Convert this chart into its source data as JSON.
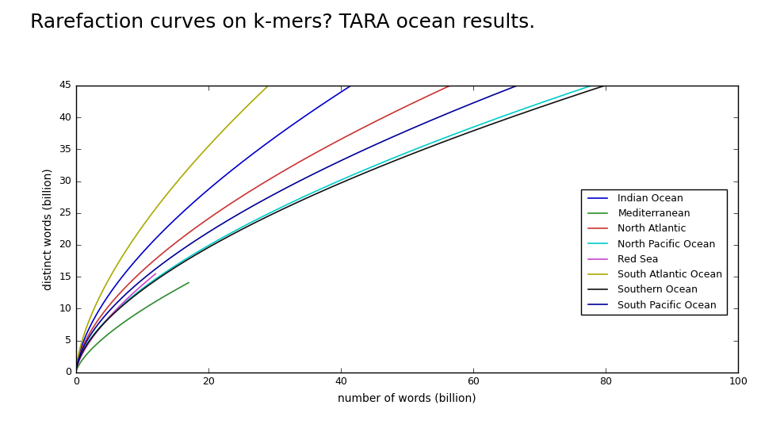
{
  "title": "Rarefaction curves on k-mers? TARA ocean results.",
  "xlabel": "number of words (billion)",
  "ylabel": "distinct words (billion)",
  "xlim": [
    0,
    100
  ],
  "ylim": [
    0,
    45
  ],
  "xticks": [
    0,
    20,
    40,
    60,
    80,
    100
  ],
  "yticks": [
    0,
    5,
    10,
    15,
    20,
    25,
    30,
    35,
    40,
    45
  ],
  "title_fontsize": 18,
  "axis_fontsize": 10,
  "tick_fontsize": 9,
  "legend_fontsize": 9,
  "background_color": "#ffffff",
  "series": [
    {
      "name": "Indian Ocean",
      "color": "#0000cc",
      "x_start": 0.1,
      "x_end": 95,
      "coeff": 4.55,
      "power": 0.615
    },
    {
      "name": "Mediterranean",
      "color": "#2e8b2e",
      "x_start": 0.1,
      "x_end": 17,
      "coeff": 2.05,
      "power": 0.68
    },
    {
      "name": "North Atlantic",
      "color": "#cc3333",
      "x_start": 0.1,
      "x_end": 60,
      "coeff": 4.0,
      "power": 0.6
    },
    {
      "name": "North Pacific Ocean",
      "color": "#00cccc",
      "x_start": 0.1,
      "x_end": 95,
      "coeff": 3.3,
      "power": 0.6
    },
    {
      "name": "Red Sea",
      "color": "#cc44cc",
      "x_start": 0.1,
      "x_end": 12,
      "coeff": 3.0,
      "power": 0.66
    },
    {
      "name": "South Atlantic Ocean",
      "color": "#aaaa00",
      "x_start": 0.1,
      "x_end": 47,
      "coeff": 5.3,
      "power": 0.635
    },
    {
      "name": "Southern Ocean",
      "color": "#111111",
      "x_start": 0.1,
      "x_end": 95,
      "coeff": 3.25,
      "power": 0.6
    },
    {
      "name": "South Pacific Ocean",
      "color": "#000099",
      "x_start": 0.1,
      "x_end": 75,
      "coeff": 3.7,
      "power": 0.595
    }
  ]
}
